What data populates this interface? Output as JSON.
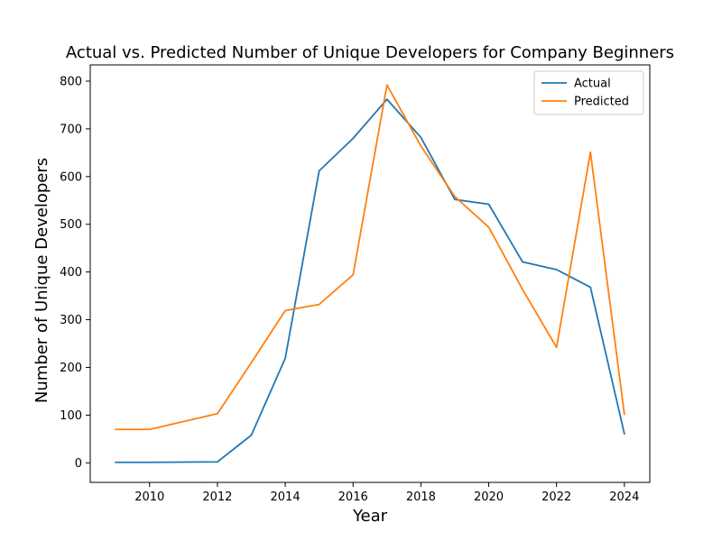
{
  "chart_data": {
    "type": "line",
    "title": "Actual vs. Predicted Number of Unique Developers for Company Beginners",
    "xlabel": "Year",
    "ylabel": "Number of Unique Developers",
    "x": [
      2009,
      2010,
      2012,
      2013,
      2014,
      2015,
      2016,
      2017,
      2018,
      2019,
      2020,
      2021,
      2022,
      2023,
      2024
    ],
    "series": [
      {
        "name": "Actual",
        "color": "#1f77b4",
        "values": [
          1,
          1,
          2,
          58,
          219,
          612,
          680,
          762,
          682,
          552,
          542,
          421,
          405,
          368,
          61
        ]
      },
      {
        "name": "Predicted",
        "color": "#ff7f0e",
        "values": [
          70,
          70,
          103,
          210,
          319,
          332,
          394,
          792,
          664,
          558,
          494,
          363,
          242,
          651,
          102
        ]
      }
    ],
    "xlim": [
      2008.25,
      2024.75
    ],
    "ylim": [
      -41,
      834
    ],
    "xticks": [
      "2010",
      "2012",
      "2014",
      "2016",
      "2018",
      "2020",
      "2022",
      "2024"
    ],
    "yticks": [
      "0",
      "100",
      "200",
      "300",
      "400",
      "500",
      "600",
      "700",
      "800"
    ],
    "legend_position": "top-right",
    "grid": false
  }
}
